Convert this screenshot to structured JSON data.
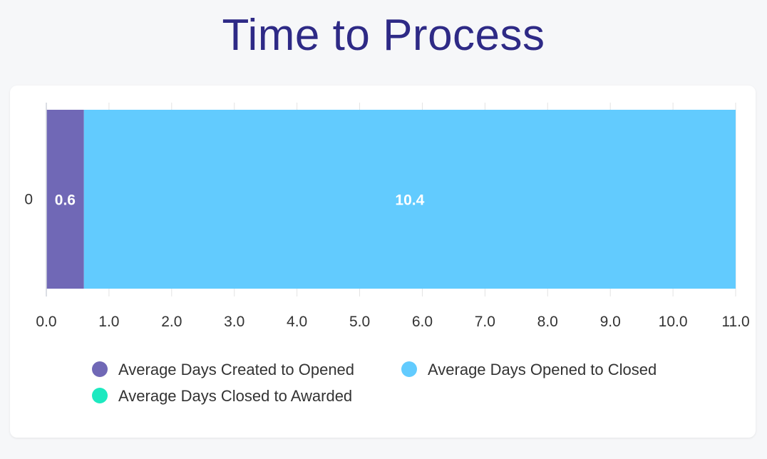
{
  "page": {
    "title": "Time to Process"
  },
  "chart_data": {
    "type": "bar",
    "orientation": "horizontal",
    "stacked": true,
    "categories": [
      "0"
    ],
    "series": [
      {
        "name": "Average Days Created to Opened",
        "values": [
          0.6
        ],
        "color": "#7068b6",
        "label": "0.6"
      },
      {
        "name": "Average Days Opened to Closed",
        "values": [
          10.4
        ],
        "color": "#62cbfe",
        "label": "10.4"
      },
      {
        "name": "Average Days Closed to Awarded",
        "values": [
          0
        ],
        "color": "#1de9c0",
        "label": ""
      }
    ],
    "xticks": [
      "0.0",
      "1.0",
      "2.0",
      "3.0",
      "4.0",
      "5.0",
      "6.0",
      "7.0",
      "8.0",
      "9.0",
      "10.0",
      "11.0"
    ],
    "xlim": [
      0,
      11
    ],
    "grid": true,
    "legend": "bottom"
  }
}
